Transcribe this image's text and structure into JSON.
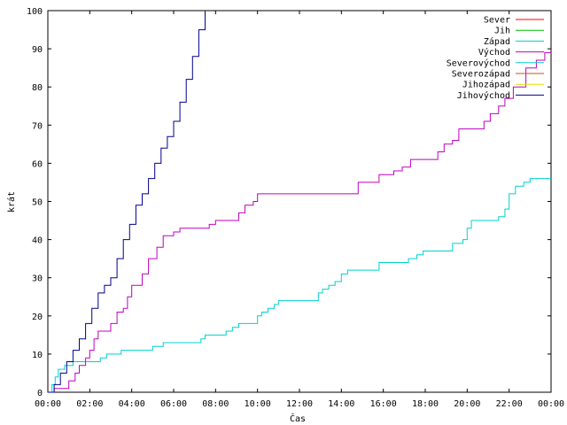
{
  "chart_data": {
    "type": "line",
    "title": "",
    "xlabel": "Čas",
    "ylabel": "krát",
    "xlim": [
      0,
      24
    ],
    "ylim": [
      0,
      100
    ],
    "x_unit": "hours",
    "x_ticks": [
      0,
      2,
      4,
      6,
      8,
      10,
      12,
      14,
      16,
      18,
      20,
      22,
      24
    ],
    "x_tick_labels": [
      "00:00",
      "02:00",
      "04:00",
      "06:00",
      "08:00",
      "10:00",
      "12:00",
      "14:00",
      "16:00",
      "18:00",
      "20:00",
      "22:00",
      "00:00"
    ],
    "y_ticks": [
      0,
      10,
      20,
      30,
      40,
      50,
      60,
      70,
      80,
      90,
      100
    ],
    "y_tick_labels": [
      "0",
      "10",
      "20",
      "30",
      "40",
      "50",
      "60",
      "70",
      "80",
      "90",
      "100"
    ],
    "grid": false,
    "legend_position": "top-right",
    "series": [
      {
        "name": "Sever",
        "color": "#ff0000",
        "points": []
      },
      {
        "name": "Jih",
        "color": "#00c000",
        "points": []
      },
      {
        "name": "Západ",
        "color": "#00d0d0",
        "points": [
          [
            0,
            0
          ],
          [
            0.2,
            2
          ],
          [
            0.35,
            4
          ],
          [
            0.5,
            6
          ],
          [
            0.8,
            7
          ],
          [
            1.2,
            8
          ],
          [
            1.8,
            8
          ],
          [
            2.5,
            9
          ],
          [
            2.8,
            10
          ],
          [
            3.1,
            10
          ],
          [
            3.5,
            11
          ],
          [
            4.5,
            11
          ],
          [
            5.0,
            12
          ],
          [
            5.5,
            13
          ],
          [
            7.0,
            13
          ],
          [
            7.3,
            14
          ],
          [
            7.5,
            15
          ],
          [
            8.3,
            15
          ],
          [
            8.5,
            16
          ],
          [
            8.8,
            17
          ],
          [
            9.1,
            18
          ],
          [
            9.7,
            18
          ],
          [
            10.0,
            20
          ],
          [
            10.2,
            21
          ],
          [
            10.5,
            22
          ],
          [
            10.8,
            23
          ],
          [
            11.0,
            24
          ],
          [
            12.8,
            24
          ],
          [
            12.9,
            26
          ],
          [
            13.1,
            27
          ],
          [
            13.4,
            28
          ],
          [
            13.7,
            29
          ],
          [
            14.0,
            31
          ],
          [
            14.3,
            32
          ],
          [
            15.6,
            32
          ],
          [
            15.8,
            34
          ],
          [
            17.0,
            34
          ],
          [
            17.2,
            35
          ],
          [
            17.6,
            36
          ],
          [
            17.9,
            37
          ],
          [
            19.0,
            37
          ],
          [
            19.3,
            39
          ],
          [
            19.8,
            40
          ],
          [
            20.0,
            43
          ],
          [
            20.2,
            45
          ],
          [
            21.0,
            45
          ],
          [
            21.5,
            46
          ],
          [
            21.8,
            48
          ],
          [
            22.0,
            52
          ],
          [
            22.3,
            54
          ],
          [
            22.7,
            55
          ],
          [
            23.0,
            56
          ],
          [
            24.0,
            56
          ]
        ]
      },
      {
        "name": "Východ",
        "color": "#c000c0",
        "points": [
          [
            0,
            0
          ],
          [
            0.3,
            1
          ],
          [
            0.8,
            1
          ],
          [
            1.0,
            3
          ],
          [
            1.3,
            5
          ],
          [
            1.5,
            7
          ],
          [
            1.8,
            9
          ],
          [
            2.0,
            11
          ],
          [
            2.2,
            14
          ],
          [
            2.4,
            16
          ],
          [
            2.8,
            16
          ],
          [
            3.0,
            18
          ],
          [
            3.3,
            21
          ],
          [
            3.6,
            22
          ],
          [
            3.8,
            25
          ],
          [
            4.0,
            28
          ],
          [
            4.3,
            28
          ],
          [
            4.5,
            31
          ],
          [
            4.8,
            35
          ],
          [
            5.2,
            38
          ],
          [
            5.5,
            41
          ],
          [
            6.0,
            42
          ],
          [
            6.3,
            43
          ],
          [
            7.0,
            43
          ],
          [
            7.7,
            44
          ],
          [
            8.0,
            45
          ],
          [
            8.8,
            45
          ],
          [
            9.1,
            47
          ],
          [
            9.4,
            49
          ],
          [
            9.8,
            50
          ],
          [
            10.0,
            52
          ],
          [
            14.6,
            52
          ],
          [
            14.8,
            55
          ],
          [
            15.5,
            55
          ],
          [
            15.8,
            57
          ],
          [
            16.5,
            58
          ],
          [
            16.9,
            59
          ],
          [
            17.3,
            61
          ],
          [
            18.3,
            61
          ],
          [
            18.6,
            63
          ],
          [
            18.9,
            65
          ],
          [
            19.3,
            66
          ],
          [
            19.6,
            69
          ],
          [
            20.5,
            69
          ],
          [
            20.8,
            71
          ],
          [
            21.1,
            73
          ],
          [
            21.5,
            75
          ],
          [
            21.8,
            77
          ],
          [
            22.2,
            80
          ],
          [
            22.8,
            85
          ],
          [
            23.3,
            87
          ],
          [
            23.7,
            89
          ],
          [
            24.0,
            89
          ]
        ]
      },
      {
        "name": "Severovýchod",
        "color": "#00d0d0",
        "points": []
      },
      {
        "name": "Severozápad",
        "color": "#c05020",
        "points": []
      },
      {
        "name": "Jihozápad",
        "color": "#e0e000",
        "points": []
      },
      {
        "name": "Jihovýchod",
        "color": "#000090",
        "points": [
          [
            0,
            0
          ],
          [
            0.3,
            2
          ],
          [
            0.6,
            5
          ],
          [
            0.9,
            8
          ],
          [
            1.2,
            11
          ],
          [
            1.5,
            14
          ],
          [
            1.8,
            18
          ],
          [
            2.1,
            22
          ],
          [
            2.4,
            26
          ],
          [
            2.7,
            28
          ],
          [
            3.0,
            30
          ],
          [
            3.3,
            35
          ],
          [
            3.6,
            40
          ],
          [
            3.9,
            44
          ],
          [
            4.2,
            49
          ],
          [
            4.5,
            52
          ],
          [
            4.8,
            56
          ],
          [
            5.1,
            60
          ],
          [
            5.4,
            64
          ],
          [
            5.7,
            67
          ],
          [
            6.0,
            71
          ],
          [
            6.3,
            76
          ],
          [
            6.6,
            82
          ],
          [
            6.9,
            88
          ],
          [
            7.2,
            95
          ],
          [
            7.5,
            100
          ]
        ]
      }
    ]
  }
}
